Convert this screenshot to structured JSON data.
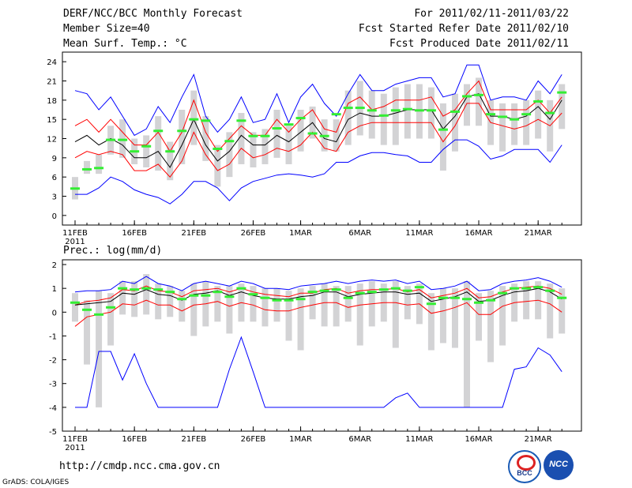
{
  "header": {
    "title": "DERF/NCC/BCC Monthly Forecast",
    "member_size": "Member Size=40",
    "variable1": "Mean Surf. Temp.: °C",
    "period": "For 2011/02/11-2011/03/22",
    "started": "Fcst Started Refer Date 2011/02/10",
    "produced": "Fcst Produced Date 2011/02/11"
  },
  "panel2_title": "Prec.: log(mm/d)",
  "footer": {
    "url": "http://cmdp.ncc.cma.gov.cn",
    "credit": "GrADS: COLA/IGES",
    "logo1": "BCC",
    "logo2": "NCC"
  },
  "colors": {
    "mean": "#000000",
    "range": "#0000ff",
    "spread": "#ff0000",
    "box": "#d3d3d5",
    "median": "#33ee33"
  },
  "chart_data": [
    {
      "type": "line",
      "name": "temperature",
      "title": "Mean Surf. Temp.: °C",
      "ylim": [
        -1.5,
        25.5
      ],
      "yticks": [
        0,
        3,
        6,
        9,
        12,
        15,
        18,
        21,
        24
      ],
      "xticks": [
        {
          "day": 0,
          "label": "11FEB",
          "sub": "2011"
        },
        {
          "day": 5,
          "label": "16FEB"
        },
        {
          "day": 10,
          "label": "21FEB"
        },
        {
          "day": 15,
          "label": "26FEB"
        },
        {
          "day": 19,
          "label": "1MAR"
        },
        {
          "day": 24,
          "label": "6MAR"
        },
        {
          "day": 29,
          "label": "11MAR"
        },
        {
          "day": 34,
          "label": "16MAR"
        },
        {
          "day": 39,
          "label": "21MAR"
        }
      ],
      "series": [
        {
          "name": "max",
          "values": [
            19.5,
            19,
            16.5,
            18.5,
            15.5,
            12.5,
            13.5,
            17,
            14.5,
            18.5,
            22,
            15.5,
            13,
            15,
            18.5,
            14.5,
            15,
            19,
            14.5,
            18.5,
            20.5,
            17.5,
            15.5,
            19,
            22,
            19.5,
            19.5,
            20.5,
            21,
            21.5,
            21.5,
            18.5,
            19,
            23.5,
            23.5,
            18,
            18.5,
            18.5,
            18,
            21,
            19,
            22
          ]
        },
        {
          "name": "p75",
          "values": [
            14,
            15,
            13,
            15,
            13,
            11,
            11,
            13,
            10,
            13,
            18,
            13,
            10,
            12,
            14,
            12.5,
            12.5,
            15,
            13,
            15,
            16.5,
            13.5,
            13,
            17.5,
            18.5,
            16.5,
            17,
            18,
            18,
            18,
            18.5,
            15.5,
            16.5,
            19,
            21,
            16.5,
            16.5,
            16.5,
            16.5,
            18,
            16,
            18.5
          ]
        },
        {
          "name": "mean",
          "values": [
            11.5,
            12.5,
            11,
            12,
            11,
            9,
            9,
            10,
            7.5,
            11,
            15,
            11,
            8.5,
            10,
            12.5,
            11,
            11,
            12.5,
            11.5,
            13,
            14.5,
            12,
            11.5,
            15,
            16,
            15.5,
            15.5,
            16,
            16.5,
            16.5,
            16.5,
            13.5,
            15.5,
            18.5,
            19,
            15.5,
            15.5,
            15,
            15.5,
            17,
            15,
            18
          ]
        },
        {
          "name": "p25",
          "values": [
            9,
            10,
            9.5,
            10,
            9.5,
            7,
            7,
            8,
            6,
            8.5,
            13,
            9.5,
            7,
            8,
            10.5,
            9,
            9.5,
            10.5,
            10,
            11,
            13,
            10.5,
            10,
            13,
            14,
            14.5,
            14.5,
            14.5,
            14.5,
            14.5,
            14.5,
            11.5,
            14,
            17.5,
            17.5,
            14.5,
            14,
            13.5,
            14,
            15,
            14,
            16
          ]
        },
        {
          "name": "min",
          "values": [
            3.3,
            3.3,
            4.3,
            6,
            5.3,
            4,
            3.3,
            2.8,
            1.8,
            3.3,
            5.3,
            5.3,
            4.3,
            2.3,
            4.3,
            5.3,
            5.8,
            6.3,
            6.5,
            6.3,
            6,
            6.5,
            8.3,
            8.3,
            9.3,
            9.8,
            9.8,
            9.5,
            9.3,
            8.3,
            8.3,
            10.3,
            11.8,
            11.8,
            10.8,
            8.8,
            9.3,
            10.3,
            10.3,
            10.3,
            8.3,
            11
          ]
        }
      ],
      "boxes_low": [
        2.5,
        6.5,
        6.5,
        9.5,
        9,
        8,
        7.5,
        7,
        5.5,
        8,
        11,
        8.5,
        4.5,
        6,
        8,
        7.5,
        8,
        9,
        8,
        10,
        12,
        10,
        10,
        11,
        12.5,
        12,
        11,
        11,
        12,
        12,
        12,
        7,
        10,
        14,
        14,
        11,
        10,
        11,
        11,
        12,
        10,
        13.5
      ],
      "boxes_high": [
        6,
        8.5,
        9.5,
        14,
        15,
        12,
        12.5,
        15.5,
        11.5,
        16.5,
        19.5,
        15.5,
        11,
        13,
        16,
        13,
        13.5,
        16.5,
        14,
        16.5,
        17,
        15,
        15,
        19.5,
        21,
        19.5,
        19,
        20,
        20.5,
        20.5,
        20,
        17.5,
        19,
        20.5,
        21.5,
        18,
        17.5,
        17.5,
        18,
        19.5,
        18,
        20.5
      ],
      "median": [
        4.2,
        7.2,
        7.4,
        11.8,
        11.8,
        10,
        10.8,
        13.2,
        10,
        13.2,
        15,
        14.8,
        10.4,
        11.6,
        14.8,
        12.4,
        12.4,
        13.6,
        14.2,
        15.2,
        12.8,
        12.4,
        15.8,
        16.8,
        16.8,
        16.4,
        15.6,
        16.4,
        16.6,
        16.4,
        16.4,
        13.4,
        16.2,
        18.6,
        18.8,
        15.8,
        15.4,
        15,
        15.8,
        17.8,
        16,
        19.2
      ]
    },
    {
      "type": "line",
      "name": "precipitation",
      "title": "Prec.: log(mm/d)",
      "ylim": [
        -5,
        2.2
      ],
      "yticks": [
        -5,
        -4,
        -3,
        -2,
        -1,
        0,
        1,
        2
      ],
      "xticks": [
        {
          "day": 0,
          "label": "11FEB",
          "sub": "2011"
        },
        {
          "day": 5,
          "label": "16FEB"
        },
        {
          "day": 10,
          "label": "21FEB"
        },
        {
          "day": 15,
          "label": "26FEB"
        },
        {
          "day": 19,
          "label": "1MAR"
        },
        {
          "day": 24,
          "label": "6MAR"
        },
        {
          "day": 29,
          "label": "11MAR"
        },
        {
          "day": 34,
          "label": "16MAR"
        },
        {
          "day": 39,
          "label": "21MAR"
        }
      ],
      "series": [
        {
          "name": "max",
          "values": [
            0.85,
            0.9,
            0.9,
            0.95,
            1.3,
            1.2,
            1.5,
            1.2,
            1.1,
            0.9,
            1.2,
            1.3,
            1.2,
            1.1,
            1.3,
            1.2,
            1.0,
            1.0,
            0.95,
            1.1,
            1.15,
            1.2,
            1.3,
            1.2,
            1.3,
            1.35,
            1.3,
            1.35,
            1.2,
            1.3,
            0.95,
            1.0,
            1.1,
            1.3,
            0.9,
            0.95,
            1.2,
            1.3,
            1.35,
            1.45,
            1.3,
            1.05
          ]
        },
        {
          "name": "p75",
          "values": [
            0.3,
            0.45,
            0.5,
            0.6,
            0.95,
            0.9,
            1.1,
            0.9,
            0.85,
            0.65,
            0.9,
            0.95,
            1.0,
            0.85,
            1.0,
            0.85,
            0.75,
            0.7,
            0.65,
            0.8,
            0.8,
            0.95,
            1.0,
            0.8,
            0.9,
            0.95,
            0.95,
            1.0,
            0.85,
            0.95,
            0.6,
            0.7,
            0.8,
            1.0,
            0.6,
            0.65,
            0.85,
            1.0,
            1.05,
            1.1,
            1.0,
            0.75
          ]
        },
        {
          "name": "mean",
          "values": [
            0.3,
            0.35,
            0.4,
            0.45,
            0.8,
            0.75,
            0.95,
            0.75,
            0.7,
            0.5,
            0.75,
            0.8,
            0.9,
            0.7,
            0.85,
            0.7,
            0.6,
            0.55,
            0.55,
            0.65,
            0.7,
            0.85,
            0.85,
            0.65,
            0.75,
            0.8,
            0.85,
            0.85,
            0.75,
            0.8,
            0.45,
            0.55,
            0.65,
            0.85,
            0.45,
            0.5,
            0.7,
            0.85,
            0.9,
            1.0,
            0.85,
            0.55
          ]
        },
        {
          "name": "p25",
          "values": [
            -0.6,
            -0.2,
            -0.1,
            0.0,
            0.35,
            0.3,
            0.5,
            0.3,
            0.3,
            0.05,
            0.3,
            0.35,
            0.45,
            0.25,
            0.4,
            0.3,
            0.1,
            0.05,
            0.05,
            0.2,
            0.3,
            0.4,
            0.4,
            0.2,
            0.3,
            0.35,
            0.4,
            0.4,
            0.3,
            0.35,
            -0.05,
            0.05,
            0.2,
            0.4,
            -0.1,
            -0.1,
            0.25,
            0.4,
            0.45,
            0.5,
            0.35,
            0.0
          ]
        },
        {
          "name": "min",
          "values": [
            -4,
            -4,
            -1.65,
            -1.65,
            -2.85,
            -1.75,
            -3,
            -4,
            -4,
            -4,
            -4,
            -4,
            -4,
            -2.4,
            -1.05,
            -2.5,
            -4,
            -4,
            -4,
            -4,
            -4,
            -4,
            -4,
            -4,
            -4,
            -4,
            -4,
            -3.6,
            -3.4,
            -4,
            -4,
            -4,
            -4,
            -4,
            -4,
            -4,
            -4,
            -2.4,
            -2.3,
            -1.5,
            -1.8,
            -2.5
          ]
        }
      ],
      "boxes_low": [
        -0.4,
        -2.2,
        -4.0,
        -1.4,
        -0.1,
        -0.2,
        -0.1,
        -0.3,
        -0.2,
        -0.4,
        -1.0,
        -0.6,
        -0.4,
        -0.9,
        -0.4,
        -0.4,
        -0.6,
        -0.4,
        -1.2,
        -1.6,
        -0.3,
        -0.6,
        -0.6,
        -0.4,
        -1.4,
        -0.6,
        -0.4,
        -1.5,
        -0.3,
        -0.5,
        -1.6,
        -1.3,
        -1.5,
        -4.0,
        -1.2,
        -2.1,
        -1.4,
        -0.4,
        -0.3,
        -0.3,
        -1.1,
        -0.9
      ],
      "boxes_high": [
        0.8,
        0.5,
        0.9,
        0.8,
        1.3,
        1.3,
        1.6,
        1.2,
        1.1,
        0.9,
        1.2,
        1.3,
        1.1,
        1.1,
        1.2,
        1.1,
        1.0,
        1.0,
        0.9,
        1.0,
        1.1,
        1.2,
        1.1,
        1.1,
        1.2,
        1.3,
        1.2,
        1.3,
        1.1,
        1.2,
        0.8,
        1.0,
        1.0,
        1.3,
        0.8,
        0.9,
        1.1,
        1.2,
        1.3,
        1.3,
        1.2,
        1.0
      ],
      "median": [
        0.4,
        0.1,
        -0.1,
        0.2,
        1.0,
        0.95,
        1.0,
        0.95,
        0.85,
        0.55,
        0.7,
        0.7,
        0.85,
        0.65,
        1.0,
        0.75,
        0.6,
        0.5,
        0.5,
        0.55,
        0.85,
        0.9,
        0.95,
        0.6,
        0.8,
        0.85,
        0.95,
        1.0,
        0.9,
        1.05,
        0.35,
        0.6,
        0.6,
        0.55,
        0.4,
        0.5,
        0.8,
        1.0,
        1.0,
        1.05,
        0.9,
        0.6
      ]
    }
  ]
}
